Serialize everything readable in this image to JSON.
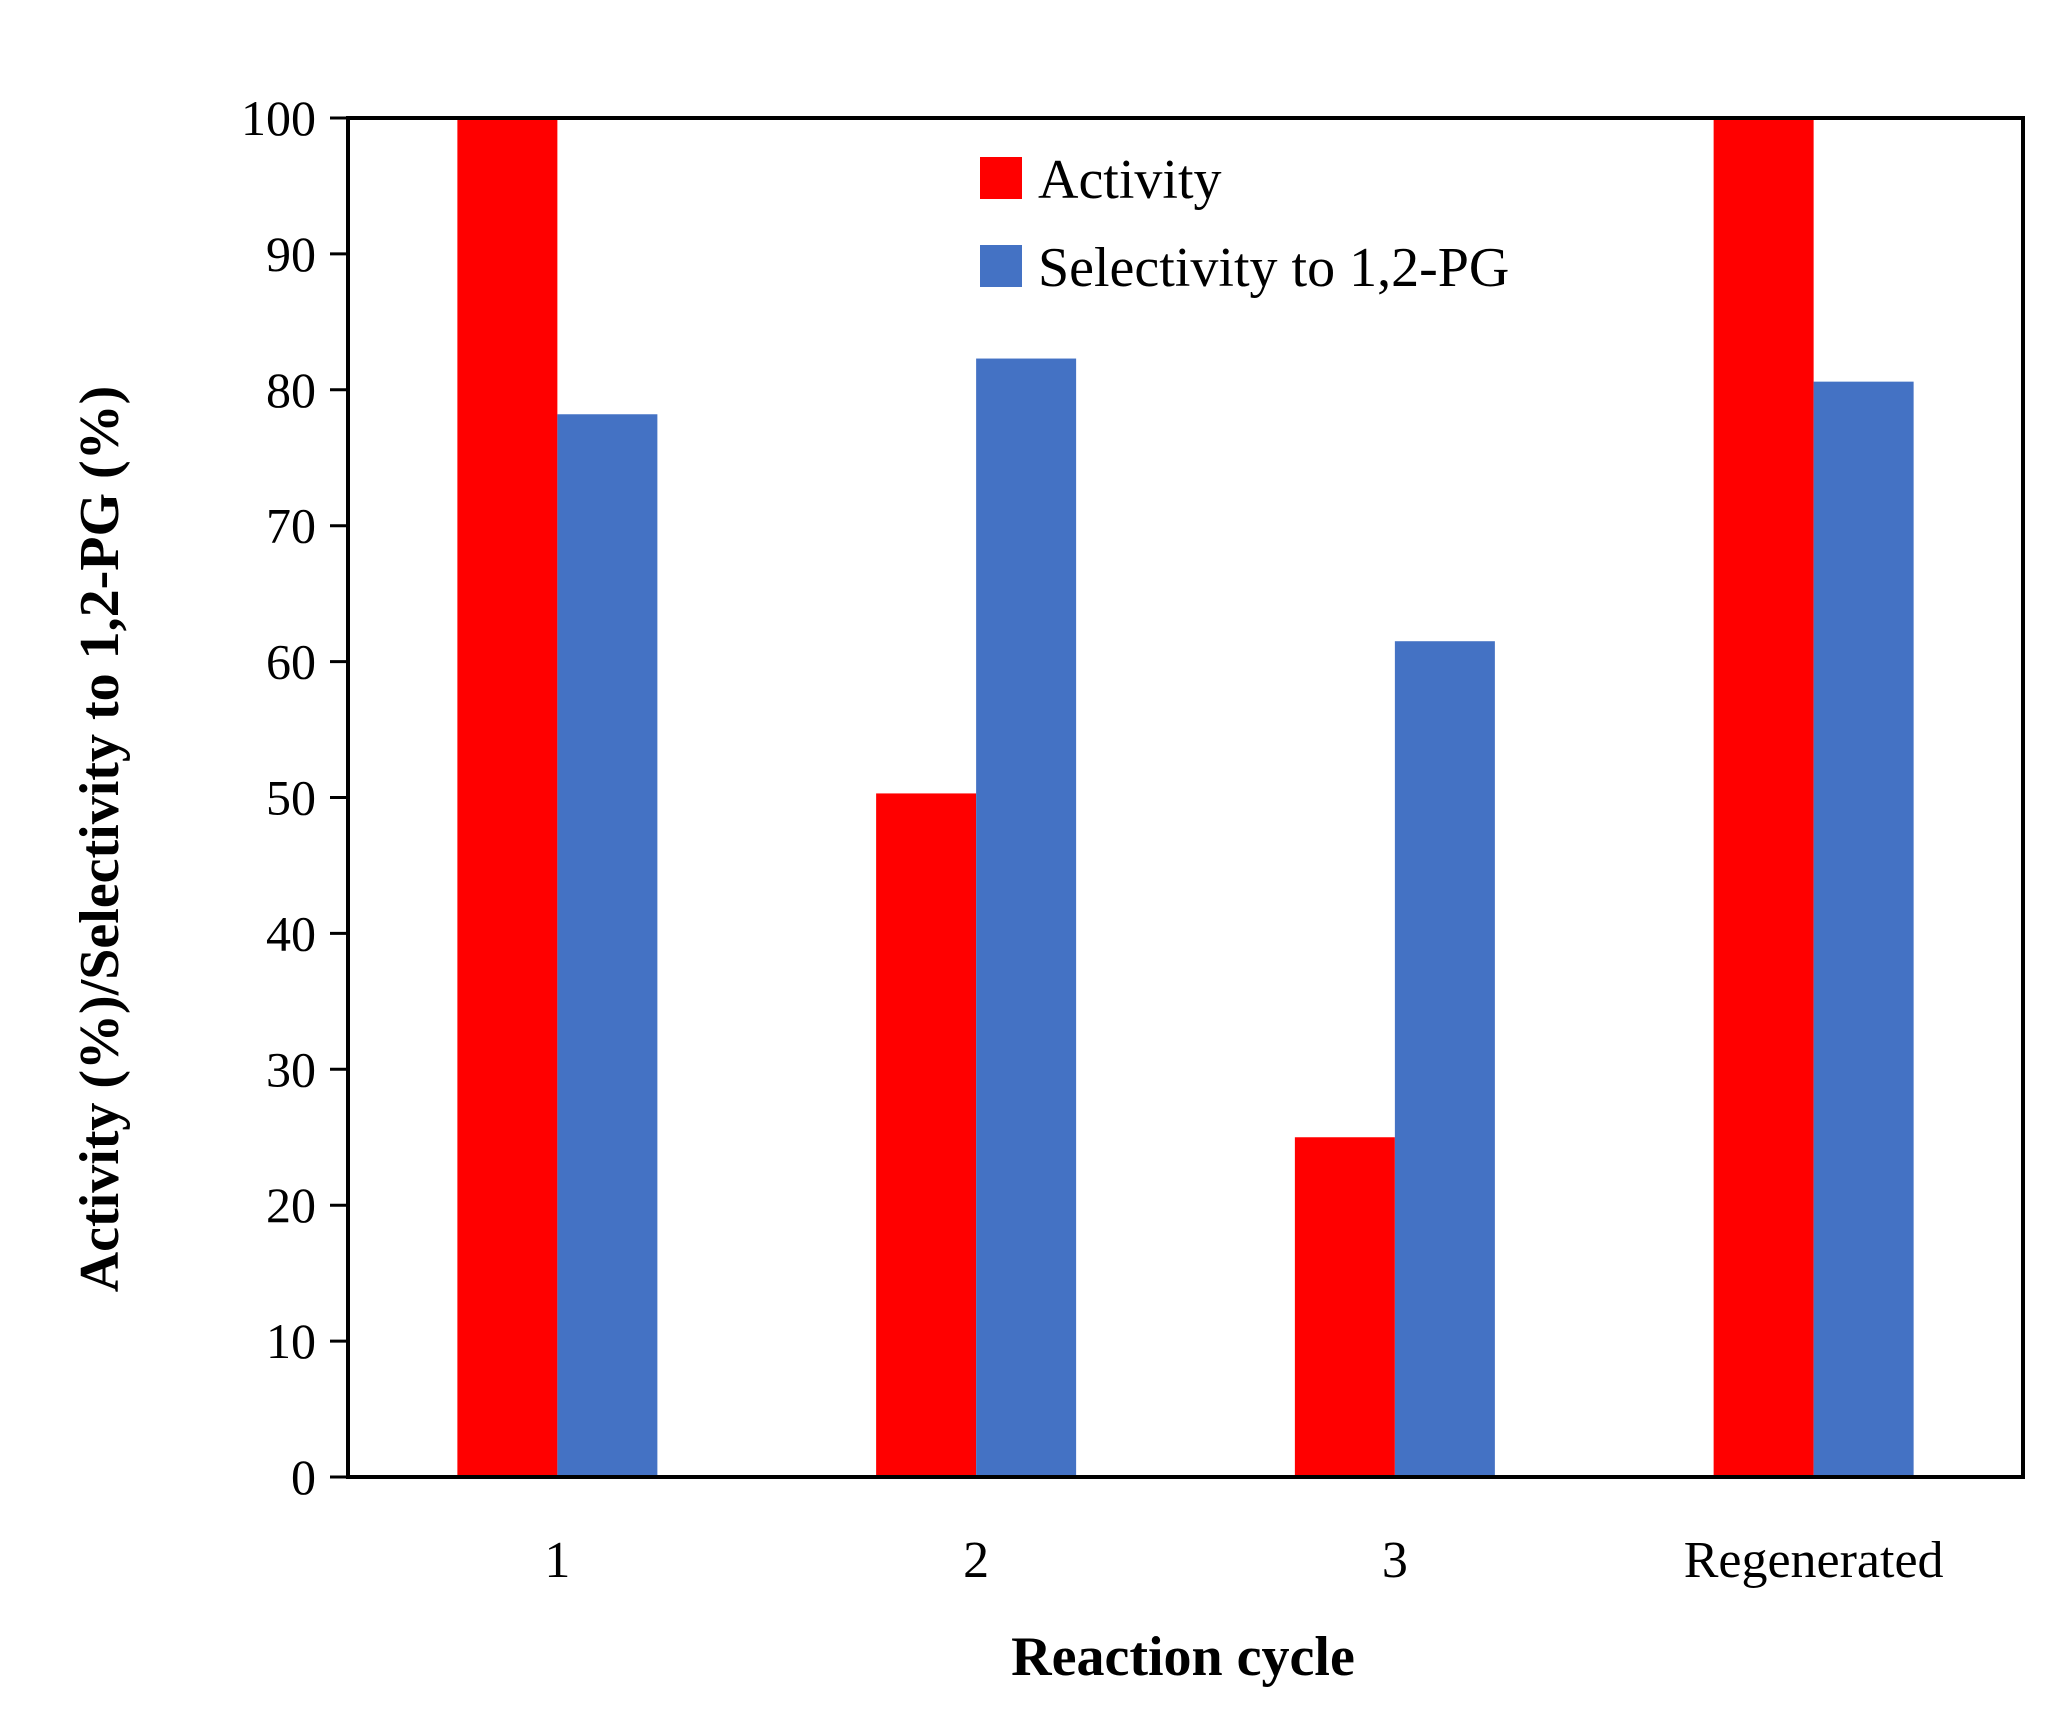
{
  "chart_data": {
    "type": "bar",
    "title": "",
    "xlabel": "Reaction cycle",
    "ylabel": "Activity (%)/Selectivity to 1,2-PG (%)",
    "categories": [
      "1",
      "2",
      "3",
      "Regenerated"
    ],
    "ylim": [
      0,
      100
    ],
    "yticks": [
      0,
      10,
      20,
      30,
      40,
      50,
      60,
      70,
      80,
      90,
      100
    ],
    "grid": false,
    "legend_position": "top-center",
    "series": [
      {
        "name": "Activity",
        "color": "#ff0000",
        "values": [
          100,
          50.3,
          25,
          100
        ]
      },
      {
        "name": "Selectivity to 1,2-PG",
        "color": "#4472c4",
        "values": [
          78.2,
          82.3,
          61.5,
          80.6
        ]
      }
    ]
  }
}
